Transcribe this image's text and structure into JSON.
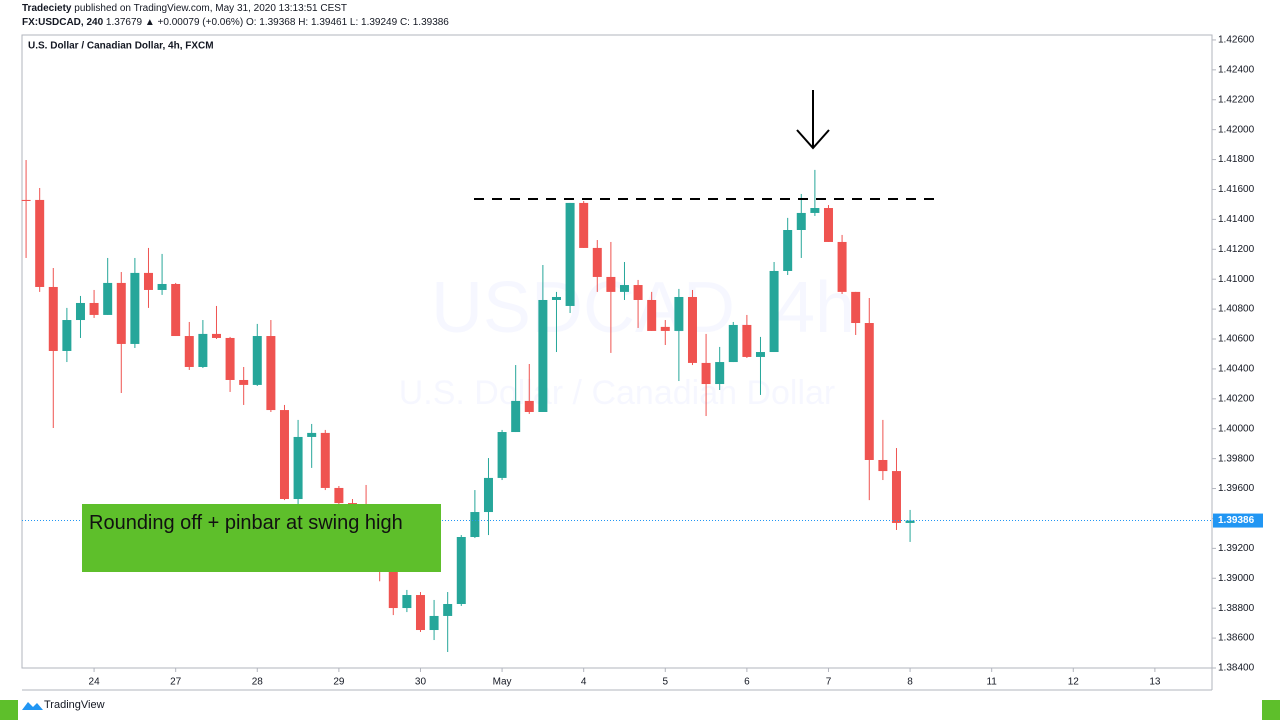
{
  "header": {
    "author": "Tradeciety",
    "published": "published on TradingView.com, May 31, 2020 13:13:51 CEST",
    "symbol": "FX:USDCAD, 240",
    "quote": "1.37679 ▲ +0.00079 (+0.06%)",
    "ohlc": "O: 1.39368 H: 1.39461 L: 1.39249 C: 1.39386"
  },
  "footer": "TradingView",
  "chart_data": {
    "type": "candlestick",
    "title": "U.S. Dollar / Canadian Dollar, 4h, FXCM",
    "watermark": [
      "USDCAD, 4h",
      "U.S. Dollar / Canadian Dollar"
    ],
    "annotation": "Rounding off + pinbar at swing high",
    "up_color": "#26a69a",
    "down_color": "#ef5350",
    "x": [
      0,
      1,
      2,
      3,
      4,
      5,
      6,
      7,
      8,
      9,
      10,
      11,
      12,
      13,
      14,
      15,
      16,
      17,
      18,
      19,
      20,
      21,
      22,
      23,
      24,
      25,
      26,
      27,
      28,
      29,
      30,
      31,
      32,
      33,
      34,
      35,
      36,
      37,
      38,
      39,
      40,
      41,
      42,
      43,
      44,
      45,
      46,
      47,
      48,
      49,
      50,
      51,
      52,
      53,
      54,
      55,
      56,
      57,
      58,
      59,
      60,
      61,
      62,
      63,
      64,
      65
    ],
    "open": [
      1.4153,
      1.4153,
      1.40948,
      1.4052,
      1.40727,
      1.40841,
      1.40761,
      1.40975,
      1.40567,
      1.41042,
      1.40928,
      1.40968,
      1.4062,
      1.40413,
      1.40634,
      1.40607,
      1.40326,
      1.40293,
      1.4062,
      1.40125,
      1.3953,
      1.39945,
      1.39972,
      1.39604,
      1.39503,
      1.39457,
      1.3939,
      1.39042,
      1.38801,
      1.38888,
      1.38654,
      1.38748,
      1.38828,
      1.39276,
      1.39443,
      1.39671,
      1.39978,
      1.40186,
      1.40112,
      1.40861,
      1.40821,
      1.4151,
      1.41209,
      1.41015,
      1.40915,
      1.40961,
      1.40861,
      1.40681,
      1.40654,
      1.40881,
      1.4044,
      1.40299,
      1.40446,
      1.40694,
      1.4048,
      1.40513,
      1.41055,
      1.41329,
      1.41443,
      1.41476,
      1.41249,
      1.40915,
      1.40707,
      1.39791,
      1.39717,
      1.3937
    ],
    "high": [
      1.41797,
      1.4161,
      1.41075,
      1.40808,
      1.40888,
      1.40928,
      1.41142,
      1.41048,
      1.41142,
      1.41209,
      1.41169,
      1.40975,
      1.40714,
      1.40727,
      1.40821,
      1.40614,
      1.40413,
      1.40701,
      1.40727,
      1.40159,
      1.40059,
      1.40032,
      1.39992,
      1.39617,
      1.3953,
      1.39624,
      1.3942,
      1.39122,
      1.38922,
      1.38908,
      1.38855,
      1.38908,
      1.39289,
      1.3959,
      1.39804,
      1.39992,
      1.40426,
      1.40433,
      1.41095,
      1.40915,
      1.4151,
      1.41523,
      1.41262,
      1.41249,
      1.41115,
      1.40995,
      1.40915,
      1.40727,
      1.40935,
      1.40928,
      1.40634,
      1.40547,
      1.40714,
      1.40761,
      1.40614,
      1.41115,
      1.4141,
      1.4157,
      1.41731,
      1.41496,
      1.41296,
      1.40915,
      1.40874,
      1.40059,
      1.39871,
      1.39457
    ],
    "low": [
      1.41142,
      1.40915,
      1.40005,
      1.40446,
      1.40607,
      1.40741,
      1.40761,
      1.40239,
      1.4054,
      1.40808,
      1.40895,
      1.4062,
      1.40393,
      1.40406,
      1.406,
      1.40246,
      1.40159,
      1.40286,
      1.40112,
      1.39523,
      1.39457,
      1.39738,
      1.3959,
      1.39443,
      1.3942,
      1.3935,
      1.3898,
      1.38754,
      1.38774,
      1.38641,
      1.38587,
      1.38507,
      1.38815,
      1.39269,
      1.39289,
      1.39657,
      1.39978,
      1.40099,
      1.40112,
      1.40513,
      1.40774,
      1.41209,
      1.40915,
      1.40507,
      1.40861,
      1.40674,
      1.40654,
      1.4056,
      1.40319,
      1.40426,
      1.40085,
      1.40259,
      1.40446,
      1.40473,
      1.40226,
      1.40513,
      1.41028,
      1.41142,
      1.41423,
      1.41249,
      1.40901,
      1.40627,
      1.39523,
      1.39657,
      1.39323,
      1.39243
    ],
    "close": [
      1.41523,
      1.40948,
      1.4052,
      1.40727,
      1.40841,
      1.40761,
      1.40975,
      1.40567,
      1.41042,
      1.40928,
      1.40968,
      1.4062,
      1.40413,
      1.40634,
      1.40607,
      1.40326,
      1.40293,
      1.4062,
      1.40125,
      1.3953,
      1.39945,
      1.39972,
      1.39604,
      1.39503,
      1.39457,
      1.3939,
      1.39042,
      1.38801,
      1.38888,
      1.38654,
      1.38748,
      1.38828,
      1.39276,
      1.39443,
      1.39671,
      1.39978,
      1.40186,
      1.40112,
      1.40861,
      1.40881,
      1.4151,
      1.41209,
      1.41015,
      1.40915,
      1.40961,
      1.40861,
      1.40654,
      1.40654,
      1.40881,
      1.4044,
      1.40299,
      1.40446,
      1.40694,
      1.4048,
      1.40513,
      1.41055,
      1.41329,
      1.41443,
      1.41476,
      1.41249,
      1.40915,
      1.40707,
      1.39791,
      1.39717,
      1.3937,
      1.39386
    ],
    "last_price": 1.39386,
    "last_price_color": "#2196f3",
    "xlim": [
      -0.3,
      87.2
    ],
    "xticks": [
      {
        "value": 5,
        "label": "24"
      },
      {
        "value": 11,
        "label": "27"
      },
      {
        "value": 17,
        "label": "28"
      },
      {
        "value": 23,
        "label": "29"
      },
      {
        "value": 29,
        "label": "30"
      },
      {
        "value": 35,
        "label": "May"
      },
      {
        "value": 41,
        "label": "4"
      },
      {
        "value": 47,
        "label": "5"
      },
      {
        "value": 53,
        "label": "6"
      },
      {
        "value": 59,
        "label": "7"
      },
      {
        "value": 65,
        "label": "8"
      },
      {
        "value": 71,
        "label": "11"
      },
      {
        "value": 77,
        "label": "12"
      },
      {
        "value": 83,
        "label": "13"
      }
    ],
    "ylim": [
      1.384,
      1.42633
    ],
    "yticks": [
      {
        "value": 1.426,
        "label": "1.42600"
      },
      {
        "value": 1.424,
        "label": "1.42400"
      },
      {
        "value": 1.422,
        "label": "1.42200"
      },
      {
        "value": 1.42,
        "label": "1.42000"
      },
      {
        "value": 1.418,
        "label": "1.41800"
      },
      {
        "value": 1.416,
        "label": "1.41600"
      },
      {
        "value": 1.414,
        "label": "1.41400"
      },
      {
        "value": 1.412,
        "label": "1.41200"
      },
      {
        "value": 1.41,
        "label": "1.41000"
      },
      {
        "value": 1.408,
        "label": "1.40800"
      },
      {
        "value": 1.406,
        "label": "1.40600"
      },
      {
        "value": 1.404,
        "label": "1.40400"
      },
      {
        "value": 1.402,
        "label": "1.40200"
      },
      {
        "value": 1.4,
        "label": "1.40000"
      },
      {
        "value": 1.398,
        "label": "1.39800"
      },
      {
        "value": 1.396,
        "label": "1.39600"
      },
      {
        "value": 1.394,
        "label": "1.39400"
      },
      {
        "value": 1.392,
        "label": "1.39200"
      },
      {
        "value": 1.39,
        "label": "1.39000"
      },
      {
        "value": 1.388,
        "label": "1.38800"
      },
      {
        "value": 1.386,
        "label": "1.38600"
      },
      {
        "value": 1.384,
        "label": "1.38400"
      }
    ]
  }
}
